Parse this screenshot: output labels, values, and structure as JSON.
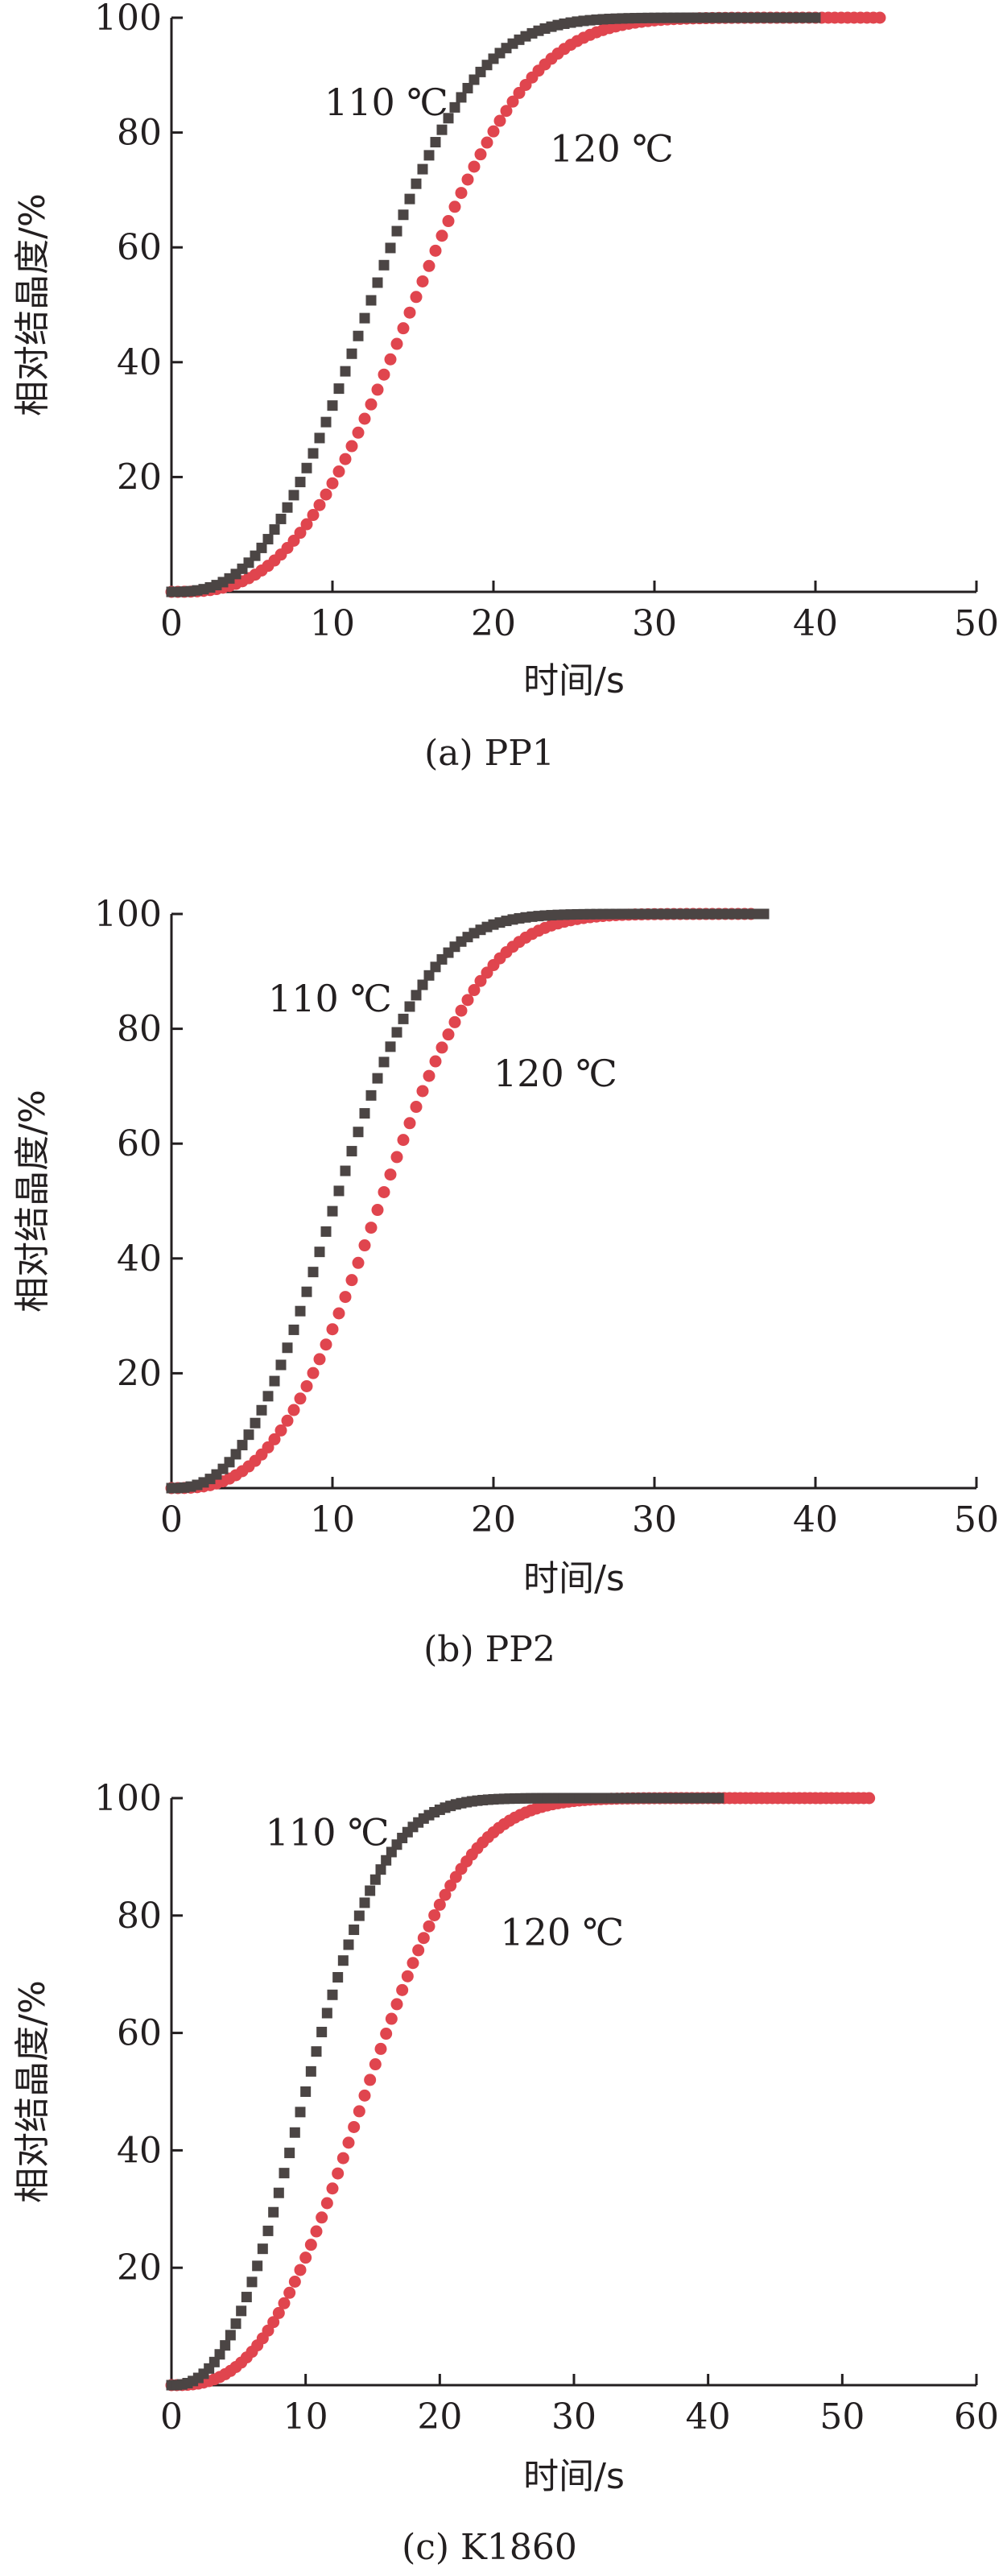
{
  "colors": {
    "series_110": "#4b4544",
    "series_120": "#e0454e",
    "axis": "#231f20"
  },
  "chart_data": [
    {
      "type": "scatter",
      "caption": "(a) PP1",
      "xlabel": "时间/s",
      "ylabel": "相对结晶度/%",
      "xlim": [
        0,
        50
      ],
      "ylim": [
        0,
        100
      ],
      "xticks": [
        0,
        10,
        20,
        30,
        40,
        50
      ],
      "yticks": [
        20,
        40,
        60,
        80,
        100
      ],
      "grid": false,
      "series": [
        {
          "name": "110 ℃",
          "marker": "square",
          "t_half": 12.3,
          "sharpness": 2.75,
          "x_end": 40,
          "label_at": {
            "x": 9.5,
            "y": 83
          }
        },
        {
          "name": "120 ℃",
          "marker": "circle",
          "t_half": 15.0,
          "sharpness": 2.95,
          "x_end": 44,
          "label_at": {
            "x": 23.5,
            "y": 75
          }
        }
      ]
    },
    {
      "type": "scatter",
      "caption": "(b) PP2",
      "xlabel": "时间/s",
      "ylabel": "相对结晶度/%",
      "xlim": [
        0,
        50
      ],
      "ylim": [
        0,
        100
      ],
      "xticks": [
        0,
        10,
        20,
        30,
        40,
        50
      ],
      "yticks": [
        20,
        40,
        60,
        80,
        100
      ],
      "grid": false,
      "series": [
        {
          "name": "110 ℃",
          "marker": "square",
          "t_half": 10.2,
          "sharpness": 2.6,
          "x_end": 37,
          "label_at": {
            "x": 6.0,
            "y": 83
          }
        },
        {
          "name": "120 ℃",
          "marker": "circle",
          "t_half": 13.0,
          "sharpness": 2.9,
          "x_end": 36,
          "label_at": {
            "x": 20.0,
            "y": 70
          }
        }
      ]
    },
    {
      "type": "scatter",
      "caption": "(c) K1860",
      "xlabel": "时间/s",
      "ylabel": "相对结晶度/%",
      "xlim": [
        0,
        60
      ],
      "ylim": [
        0,
        100
      ],
      "xticks": [
        0,
        10,
        20,
        30,
        40,
        50,
        60
      ],
      "yticks": [
        20,
        40,
        60,
        80,
        100
      ],
      "grid": false,
      "series": [
        {
          "name": "110 ℃",
          "marker": "square",
          "t_half": 10.0,
          "sharpness": 2.5,
          "x_end": 41,
          "label_at": {
            "x": 7.0,
            "y": 92
          }
        },
        {
          "name": "120 ℃",
          "marker": "circle",
          "t_half": 14.5,
          "sharpness": 2.8,
          "x_end": 52,
          "label_at": {
            "x": 24.5,
            "y": 75
          }
        }
      ]
    }
  ]
}
